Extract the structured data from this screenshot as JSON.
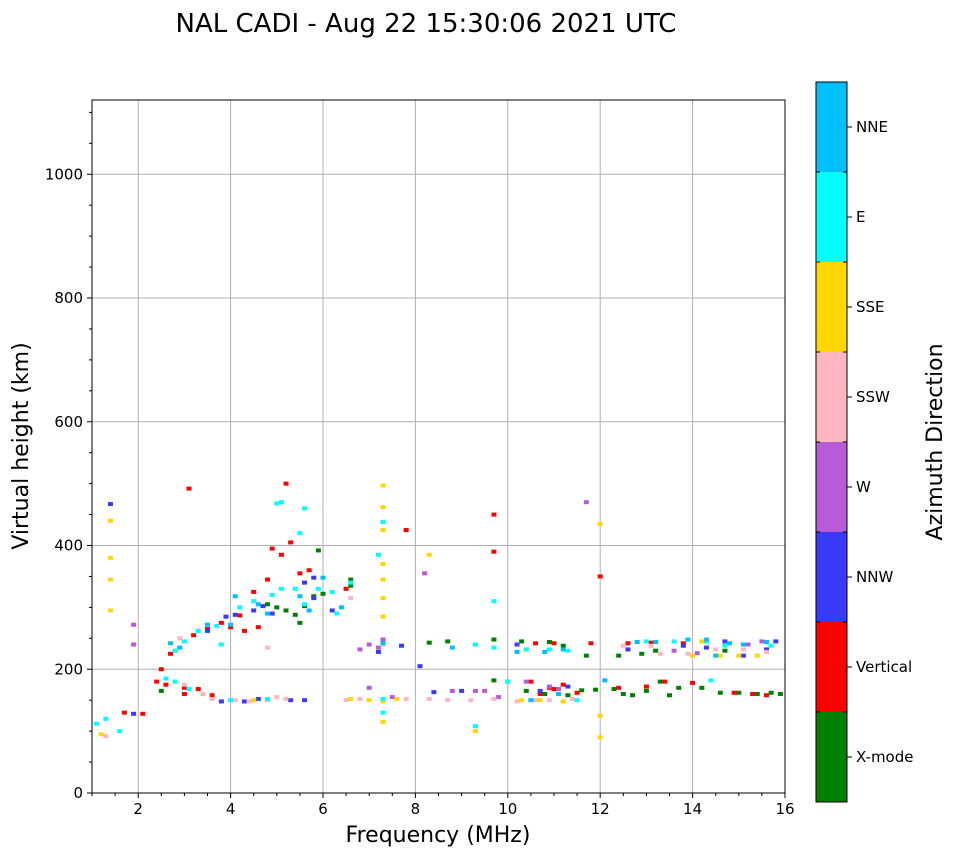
{
  "chart_data": {
    "type": "scatter",
    "title": "NAL CADI - Aug 22 15:30:06 2021 UTC",
    "xlabel": "Frequency (MHz)",
    "ylabel": "Virtual height (km)",
    "xlim": [
      1,
      16
    ],
    "ylim": [
      0,
      1120
    ],
    "grid": true,
    "x_ticks": [
      2,
      4,
      6,
      8,
      10,
      12,
      14,
      16
    ],
    "x_tick_labels": [
      "2",
      "4",
      "6",
      "8",
      "10",
      "12",
      "14",
      "16"
    ],
    "y_ticks": [
      0,
      200,
      400,
      600,
      800,
      1000
    ],
    "y_tick_labels": [
      "0",
      "200",
      "400",
      "600",
      "800",
      "1000"
    ],
    "colorbar": {
      "label": "Azimuth Direction",
      "categories": [
        "X-mode",
        "Vertical",
        "NNW",
        "W",
        "SSW",
        "SSE",
        "E",
        "NNE"
      ],
      "colors": [
        "#008000",
        "#ff0000",
        "#3a3aff",
        "#b85bd6",
        "#ffb6c1",
        "#ffd700",
        "#00ffff",
        "#00bfff"
      ]
    },
    "series": [
      {
        "name": "X-mode",
        "points": [
          [
            5.9,
            392
          ],
          [
            6.6,
            345
          ],
          [
            6.6,
            335
          ],
          [
            4.8,
            305
          ],
          [
            5.0,
            300
          ],
          [
            5.2,
            295
          ],
          [
            5.4,
            288
          ],
          [
            5.6,
            302
          ],
          [
            5.8,
            318
          ],
          [
            6.0,
            322
          ],
          [
            5.5,
            275
          ],
          [
            8.3,
            243
          ],
          [
            8.7,
            245
          ],
          [
            9.7,
            248
          ],
          [
            10.3,
            245
          ],
          [
            10.9,
            244
          ],
          [
            11.2,
            238
          ],
          [
            11.7,
            222
          ],
          [
            12.4,
            222
          ],
          [
            12.9,
            225
          ],
          [
            13.2,
            230
          ],
          [
            14.7,
            230
          ],
          [
            9.7,
            182
          ],
          [
            10.4,
            165
          ],
          [
            10.8,
            160
          ],
          [
            11.3,
            158
          ],
          [
            11.9,
            167
          ],
          [
            12.5,
            160
          ],
          [
            13.0,
            165
          ],
          [
            13.3,
            180
          ],
          [
            13.7,
            170
          ],
          [
            14.2,
            170
          ],
          [
            14.6,
            162
          ],
          [
            15.0,
            162
          ],
          [
            15.4,
            160
          ],
          [
            15.9,
            160
          ],
          [
            13.5,
            158
          ],
          [
            12.3,
            168
          ],
          [
            2.5,
            165
          ],
          [
            11.6,
            166
          ],
          [
            15.7,
            162
          ],
          [
            12.7,
            158
          ]
        ]
      },
      {
        "name": "Vertical",
        "points": [
          [
            3.2,
            255
          ],
          [
            3.5,
            265
          ],
          [
            3.8,
            275
          ],
          [
            4.0,
            268
          ],
          [
            4.3,
            262
          ],
          [
            4.6,
            268
          ],
          [
            4.2,
            287
          ],
          [
            5.2,
            500
          ],
          [
            5.3,
            405
          ],
          [
            5.5,
            355
          ],
          [
            5.7,
            360
          ],
          [
            4.9,
            395
          ],
          [
            4.8,
            345
          ],
          [
            2.4,
            180
          ],
          [
            2.6,
            175
          ],
          [
            3.0,
            170
          ],
          [
            3.3,
            168
          ],
          [
            3.6,
            158
          ],
          [
            2.5,
            200
          ],
          [
            2.7,
            225
          ],
          [
            3.1,
            492
          ],
          [
            2.1,
            128
          ],
          [
            1.7,
            130
          ],
          [
            6.5,
            330
          ],
          [
            7.8,
            425
          ],
          [
            9.7,
            450
          ],
          [
            9.7,
            390
          ],
          [
            10.6,
            242
          ],
          [
            11.0,
            242
          ],
          [
            11.8,
            242
          ],
          [
            12.6,
            242
          ],
          [
            13.1,
            243
          ],
          [
            13.8,
            242
          ],
          [
            12.0,
            350
          ],
          [
            10.5,
            180
          ],
          [
            10.9,
            170
          ],
          [
            11.2,
            175
          ],
          [
            11.5,
            162
          ],
          [
            12.4,
            170
          ],
          [
            13.0,
            172
          ],
          [
            13.4,
            180
          ],
          [
            14.0,
            178
          ],
          [
            14.9,
            162
          ],
          [
            15.3,
            160
          ],
          [
            15.6,
            158
          ],
          [
            10.7,
            160
          ],
          [
            11.0,
            168
          ],
          [
            5.1,
            385
          ],
          [
            4.5,
            325
          ],
          [
            3.0,
            160
          ]
        ]
      },
      {
        "name": "NNW",
        "points": [
          [
            4.1,
            288
          ],
          [
            4.5,
            295
          ],
          [
            4.7,
            302
          ],
          [
            3.5,
            262
          ],
          [
            3.9,
            285
          ],
          [
            4.9,
            290
          ],
          [
            5.6,
            340
          ],
          [
            5.8,
            348
          ],
          [
            6.2,
            295
          ],
          [
            5.3,
            150
          ],
          [
            5.6,
            150
          ],
          [
            1.4,
            467
          ],
          [
            7.3,
            248
          ],
          [
            7.2,
            228
          ],
          [
            7.7,
            238
          ],
          [
            8.1,
            205
          ],
          [
            8.4,
            163
          ],
          [
            9.0,
            165
          ],
          [
            10.2,
            240
          ],
          [
            10.7,
            165
          ],
          [
            11.3,
            172
          ],
          [
            12.6,
            232
          ],
          [
            13.8,
            238
          ],
          [
            14.3,
            235
          ],
          [
            14.7,
            245
          ],
          [
            15.1,
            222
          ],
          [
            15.6,
            232
          ],
          [
            15.8,
            245
          ],
          [
            1.9,
            128
          ],
          [
            4.6,
            152
          ],
          [
            4.3,
            148
          ],
          [
            5.8,
            315
          ],
          [
            3.8,
            148
          ]
        ]
      },
      {
        "name": "W",
        "points": [
          [
            7.0,
            240
          ],
          [
            7.2,
            235
          ],
          [
            7.3,
            248
          ],
          [
            6.8,
            232
          ],
          [
            8.8,
            165
          ],
          [
            9.3,
            165
          ],
          [
            9.5,
            165
          ],
          [
            10.0,
            180
          ],
          [
            10.4,
            180
          ],
          [
            10.9,
            172
          ],
          [
            11.1,
            168
          ],
          [
            11.7,
            470
          ],
          [
            1.9,
            272
          ],
          [
            1.9,
            240
          ],
          [
            7.0,
            170
          ],
          [
            7.5,
            155
          ],
          [
            15.5,
            245
          ],
          [
            15.2,
            240
          ],
          [
            13.6,
            230
          ],
          [
            8.2,
            355
          ],
          [
            14.1,
            226
          ],
          [
            9.8,
            155
          ]
        ]
      },
      {
        "name": "SSW",
        "points": [
          [
            3.0,
            175
          ],
          [
            3.4,
            160
          ],
          [
            3.6,
            152
          ],
          [
            4.1,
            150
          ],
          [
            4.4,
            148
          ],
          [
            4.8,
            150
          ],
          [
            5.2,
            152
          ],
          [
            6.6,
            315
          ],
          [
            7.8,
            152
          ],
          [
            8.3,
            152
          ],
          [
            8.7,
            150
          ],
          [
            9.2,
            150
          ],
          [
            9.7,
            152
          ],
          [
            10.2,
            148
          ],
          [
            10.6,
            150
          ],
          [
            10.9,
            150
          ],
          [
            11.4,
            152
          ],
          [
            6.5,
            150
          ],
          [
            6.8,
            152
          ],
          [
            5.0,
            155
          ],
          [
            13.3,
            225
          ],
          [
            13.9,
            225
          ],
          [
            14.5,
            232
          ],
          [
            15.1,
            232
          ],
          [
            15.6,
            228
          ],
          [
            12.5,
            238
          ],
          [
            13.1,
            238
          ],
          [
            4.8,
            235
          ],
          [
            2.9,
            250
          ],
          [
            7.3,
            240
          ],
          [
            1.3,
            92
          ]
        ]
      },
      {
        "name": "SSE",
        "points": [
          [
            7.3,
            497
          ],
          [
            7.3,
            462
          ],
          [
            7.3,
            425
          ],
          [
            7.3,
            370
          ],
          [
            7.3,
            345
          ],
          [
            7.3,
            315
          ],
          [
            7.3,
            285
          ],
          [
            8.3,
            385
          ],
          [
            12.0,
            435
          ],
          [
            12.0,
            125
          ],
          [
            12.0,
            90
          ],
          [
            1.4,
            440
          ],
          [
            1.4,
            380
          ],
          [
            1.4,
            345
          ],
          [
            1.4,
            295
          ],
          [
            1.2,
            95
          ],
          [
            6.6,
            152
          ],
          [
            7.0,
            150
          ],
          [
            7.3,
            148
          ],
          [
            7.6,
            152
          ],
          [
            9.3,
            100
          ],
          [
            10.3,
            150
          ],
          [
            10.7,
            150
          ],
          [
            11.2,
            148
          ],
          [
            14.0,
            222
          ],
          [
            14.6,
            222
          ],
          [
            15.4,
            222
          ],
          [
            14.2,
            245
          ],
          [
            15.0,
            222
          ],
          [
            7.3,
            115
          ],
          [
            4.5,
            150
          ]
        ]
      },
      {
        "name": "E",
        "points": [
          [
            2.8,
            230
          ],
          [
            3.0,
            245
          ],
          [
            3.3,
            262
          ],
          [
            3.7,
            270
          ],
          [
            4.2,
            300
          ],
          [
            4.5,
            310
          ],
          [
            4.9,
            320
          ],
          [
            5.1,
            330
          ],
          [
            5.4,
            330
          ],
          [
            5.6,
            305
          ],
          [
            5.9,
            330
          ],
          [
            6.2,
            325
          ],
          [
            6.6,
            340
          ],
          [
            2.6,
            185
          ],
          [
            2.8,
            180
          ],
          [
            3.1,
            168
          ],
          [
            4.0,
            150
          ],
          [
            4.8,
            152
          ],
          [
            7.2,
            385
          ],
          [
            7.3,
            438
          ],
          [
            5.1,
            470
          ],
          [
            5.6,
            460
          ],
          [
            5.5,
            420
          ],
          [
            7.3,
            130
          ],
          [
            7.3,
            152
          ],
          [
            9.3,
            108
          ],
          [
            9.7,
            235
          ],
          [
            9.7,
            310
          ],
          [
            10.4,
            232
          ],
          [
            10.9,
            232
          ],
          [
            11.3,
            230
          ],
          [
            11.5,
            150
          ],
          [
            13.0,
            245
          ],
          [
            13.6,
            245
          ],
          [
            14.3,
            245
          ],
          [
            14.7,
            238
          ],
          [
            15.7,
            238
          ],
          [
            1.1,
            112
          ],
          [
            1.3,
            120
          ],
          [
            5.0,
            468
          ],
          [
            10.0,
            180
          ],
          [
            14.4,
            182
          ],
          [
            3.8,
            240
          ],
          [
            9.3,
            240
          ],
          [
            1.6,
            100
          ],
          [
            6.3,
            290
          ]
        ]
      },
      {
        "name": "NNE",
        "points": [
          [
            2.7,
            242
          ],
          [
            3.5,
            272
          ],
          [
            4.0,
            272
          ],
          [
            4.6,
            305
          ],
          [
            4.8,
            290
          ],
          [
            5.5,
            318
          ],
          [
            6.4,
            300
          ],
          [
            6.0,
            348
          ],
          [
            10.2,
            228
          ],
          [
            10.8,
            228
          ],
          [
            11.2,
            232
          ],
          [
            12.8,
            244
          ],
          [
            13.2,
            244
          ],
          [
            13.9,
            248
          ],
          [
            14.3,
            248
          ],
          [
            14.8,
            242
          ],
          [
            15.1,
            240
          ],
          [
            15.6,
            244
          ],
          [
            8.8,
            235
          ],
          [
            7.3,
            242
          ],
          [
            2.9,
            235
          ],
          [
            4.1,
            318
          ],
          [
            11.1,
            160
          ],
          [
            12.1,
            182
          ],
          [
            10.5,
            150
          ],
          [
            5.7,
            295
          ],
          [
            14.5,
            222
          ]
        ]
      }
    ]
  }
}
